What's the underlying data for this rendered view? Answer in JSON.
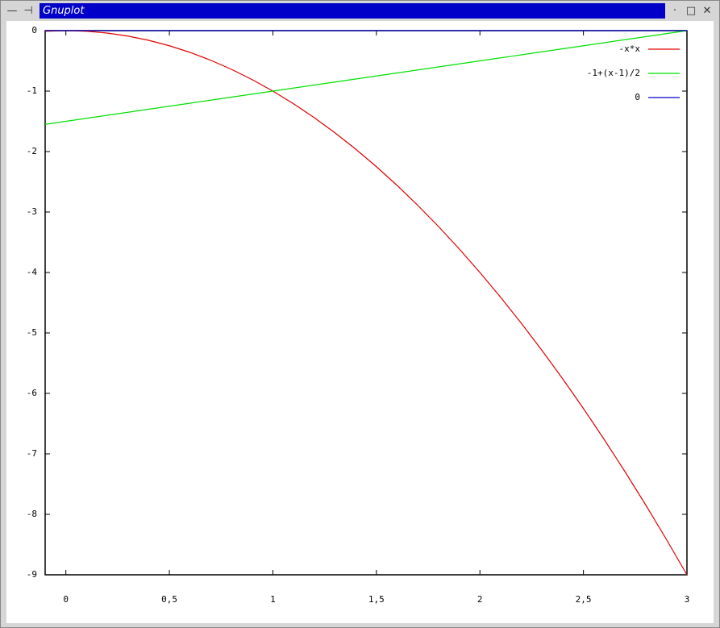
{
  "window": {
    "title": "Gnuplot"
  },
  "chart_data": {
    "type": "line",
    "x": [
      -0.1,
      0,
      0.1,
      0.2,
      0.3,
      0.4,
      0.5,
      0.6,
      0.7,
      0.8,
      0.9,
      1,
      1.1,
      1.2,
      1.3,
      1.4,
      1.5,
      1.6,
      1.7,
      1.8,
      1.9,
      2,
      2.1,
      2.2,
      2.3,
      2.4,
      2.5,
      2.6,
      2.7,
      2.8,
      2.9,
      3
    ],
    "series": [
      {
        "name": "-x*x",
        "color": "#e00000",
        "values": [
          -0.01,
          0,
          -0.01,
          -0.04,
          -0.09,
          -0.16,
          -0.25,
          -0.36,
          -0.49,
          -0.64,
          -0.81,
          -1,
          -1.21,
          -1.44,
          -1.69,
          -1.96,
          -2.25,
          -2.56,
          -2.89,
          -3.24,
          -3.61,
          -4,
          -4.41,
          -4.84,
          -5.29,
          -5.76,
          -6.25,
          -6.76,
          -7.29,
          -7.84,
          -8.41,
          -9
        ]
      },
      {
        "name": "-1+(x-1)/2",
        "color": "#00e000",
        "values": [
          -1.55,
          -1.5,
          -1.45,
          -1.4,
          -1.35,
          -1.3,
          -1.25,
          -1.2,
          -1.15,
          -1.1,
          -1.05,
          -1,
          -0.95,
          -0.9,
          -0.85,
          -0.8,
          -0.75,
          -0.7,
          -0.65,
          -0.6,
          -0.55,
          -0.5,
          -0.45,
          -0.4,
          -0.35,
          -0.3,
          -0.25,
          -0.2,
          -0.15,
          -0.1,
          -0.05,
          0
        ]
      },
      {
        "name": "0",
        "color": "#0000c0",
        "values": [
          0,
          0,
          0,
          0,
          0,
          0,
          0,
          0,
          0,
          0,
          0,
          0,
          0,
          0,
          0,
          0,
          0,
          0,
          0,
          0,
          0,
          0,
          0,
          0,
          0,
          0,
          0,
          0,
          0,
          0,
          0,
          0
        ]
      }
    ],
    "xlim": [
      -0.1,
      3
    ],
    "ylim": [
      -9,
      0
    ],
    "xticks": [
      0,
      {
        "value": 0.5,
        "label": "0,5"
      },
      1,
      {
        "value": 1.5,
        "label": "1,5"
      },
      2,
      {
        "value": 2.5,
        "label": "2,5"
      },
      3
    ],
    "yticks": [
      0,
      -1,
      -2,
      -3,
      -4,
      -5,
      -6,
      -7,
      -8,
      -9
    ],
    "legend": "top-right"
  }
}
